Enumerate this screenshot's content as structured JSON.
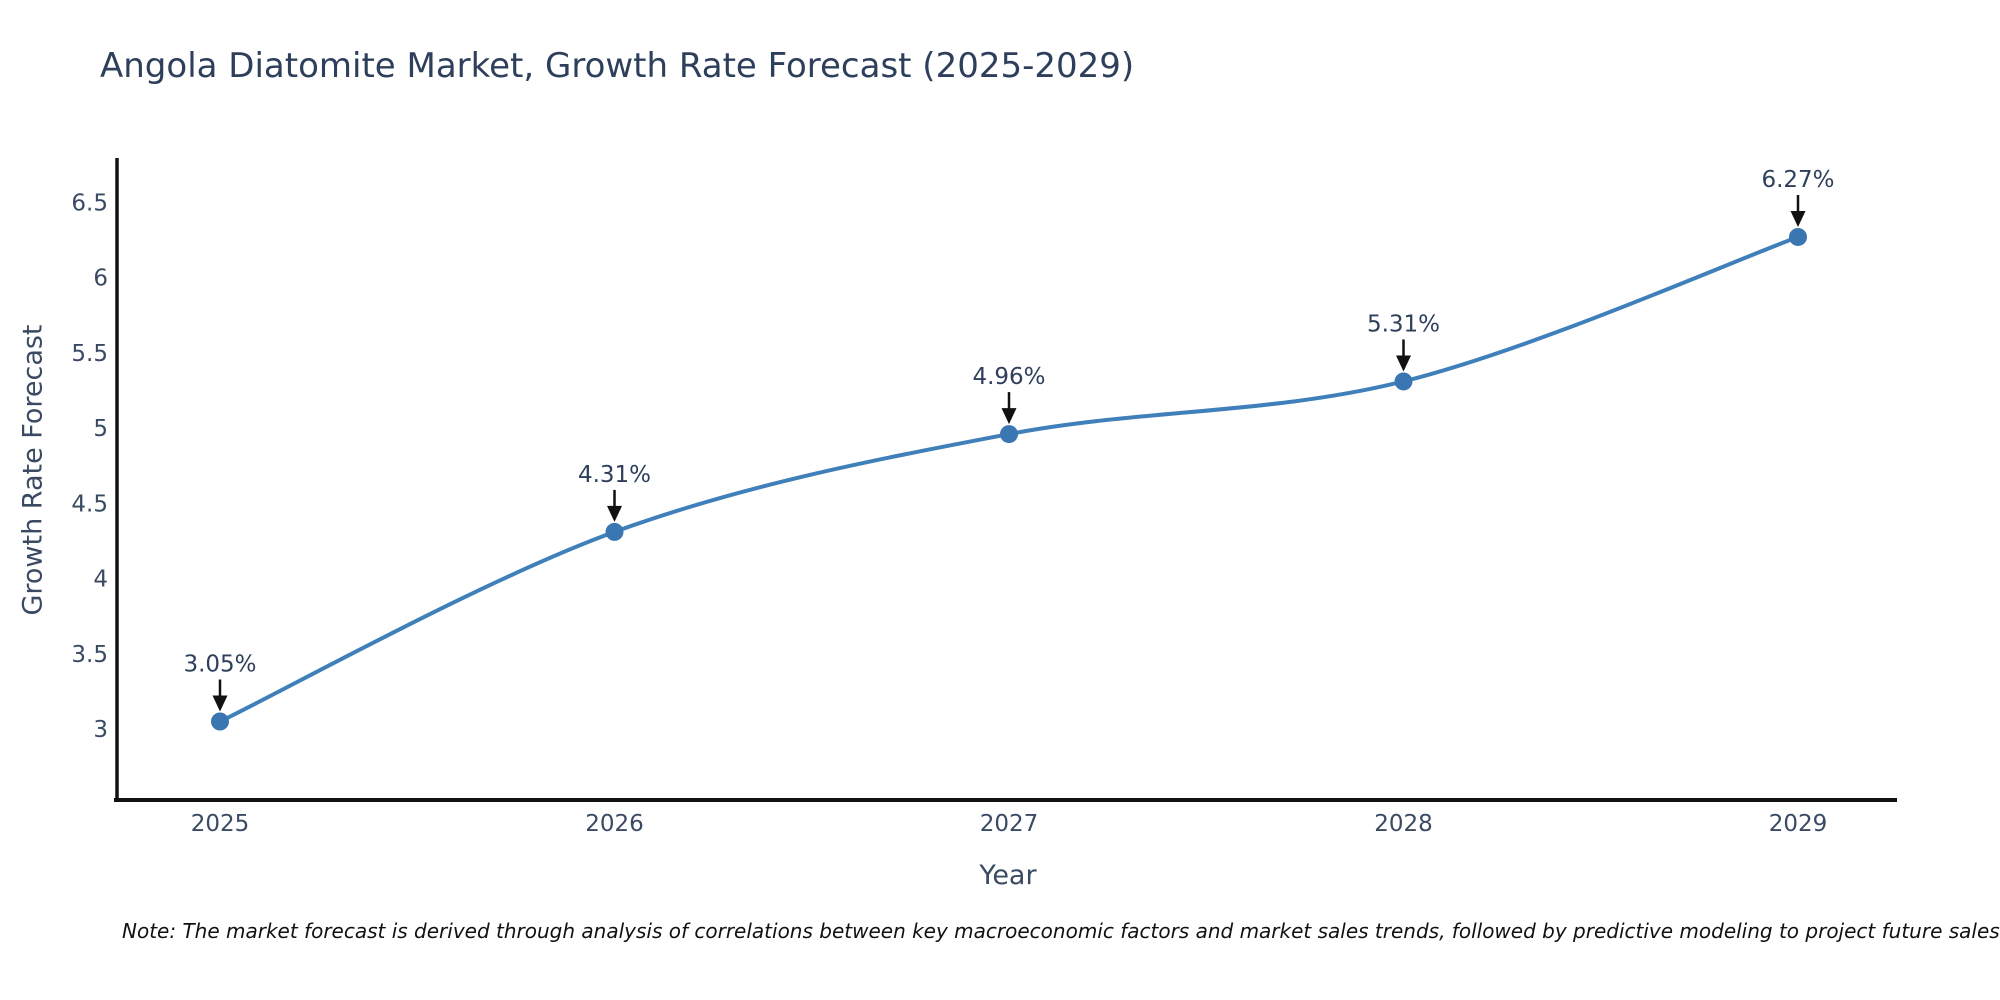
{
  "title": "Angola Diatomite Market, Growth Rate Forecast (2025-2029)",
  "note": "Note: The market forecast is derived through analysis of correlations between key macroeconomic factors and market sales trends, followed by predictive modeling to project future sales",
  "chart_data": {
    "type": "line",
    "title": "Angola Diatomite Market, Growth Rate Forecast (2025-2029)",
    "xlabel": "Year",
    "ylabel": "Growth Rate Forecast",
    "categories": [
      "2025",
      "2026",
      "2027",
      "2028",
      "2029"
    ],
    "values": [
      3.05,
      4.31,
      4.96,
      5.31,
      6.27
    ],
    "point_labels": [
      "3.05%",
      "4.31%",
      "4.96%",
      "5.31%",
      "6.27%"
    ],
    "yticks": [
      3,
      3.5,
      4,
      4.5,
      5,
      5.5,
      6,
      6.5
    ],
    "ylim": [
      2.515,
      6.795
    ],
    "grid": false,
    "legend_position": "none",
    "line_smoothing": "spline",
    "annotations": "value labels with downward arrows above each point"
  },
  "colors": {
    "background": "#ffffff",
    "title_text": "#2e3f5c",
    "axis_text": "#3b4a63",
    "axis_line": "#111111",
    "line": "#4080ba",
    "marker": "#3a76b2",
    "arrow": "#111111",
    "annotation_text": "#2e3f5c",
    "note_text": "#111111"
  }
}
